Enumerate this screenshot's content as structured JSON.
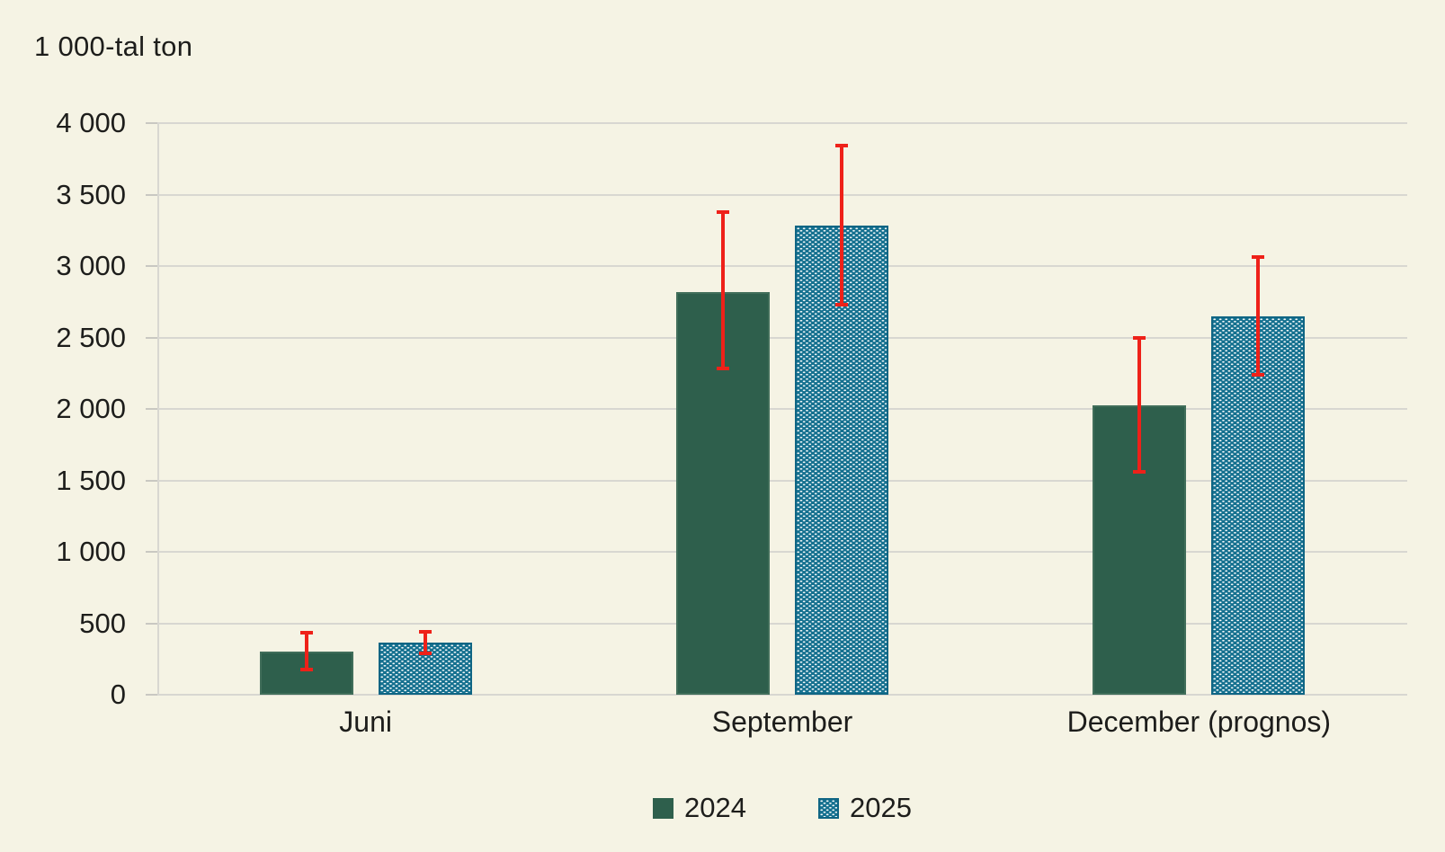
{
  "chart_data": {
    "type": "bar",
    "ylabel": "1 000-tal ton",
    "categories": [
      "Juni",
      "September",
      "December (prognos)"
    ],
    "series": [
      {
        "name": "2024",
        "color": "#2e5f4c",
        "pattern": "solid",
        "values": [
          300,
          2820,
          2025
        ],
        "error_low": [
          165,
          2270,
          1550
        ],
        "error_high": [
          445,
          3390,
          2510
        ]
      },
      {
        "name": "2025",
        "color": "#14708f",
        "pattern": "dotted-white-on-teal",
        "values": [
          365,
          3280,
          2650
        ],
        "error_low": [
          275,
          2720,
          2225
        ],
        "error_high": [
          450,
          3855,
          3075
        ]
      }
    ],
    "error_bar_color": "#ee2119",
    "ylim": [
      0,
      4000
    ],
    "ytick_step": 500,
    "ytick_labels": [
      "0",
      "500",
      "1 000",
      "1 500",
      "2 000",
      "2 500",
      "3 000",
      "3 500",
      "4 000"
    ],
    "grid": true,
    "background": "#f5f3e4",
    "gridline_color": "#d8d7d1",
    "legend_position": "bottom-center"
  }
}
